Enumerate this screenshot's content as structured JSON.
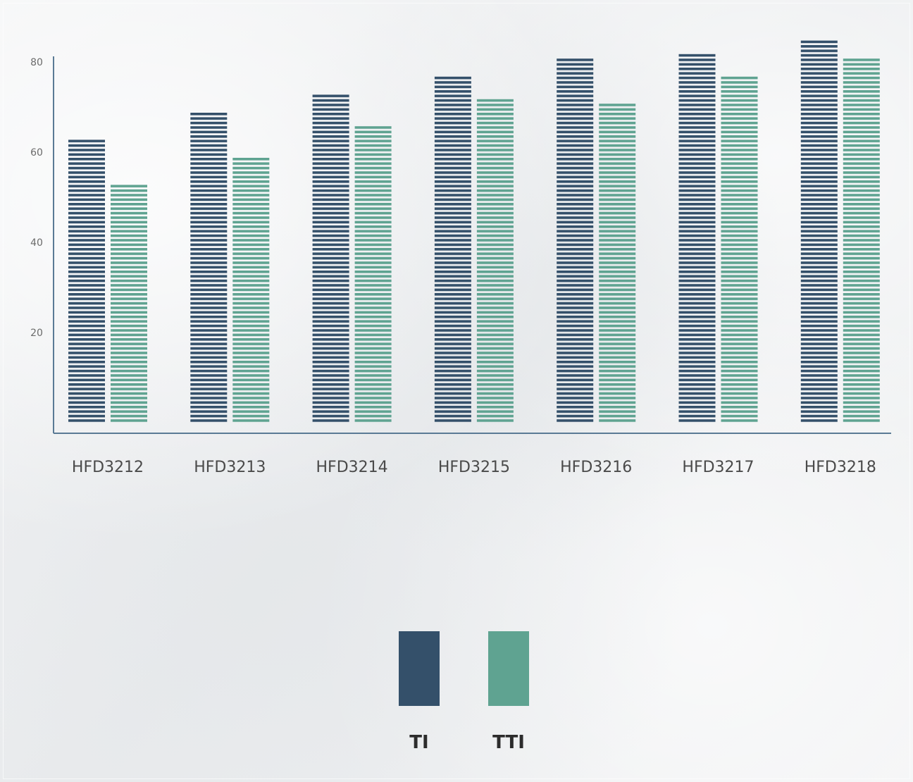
{
  "chart_data": {
    "type": "bar",
    "title": "",
    "xlabel": "",
    "ylabel": "",
    "ylim": [
      0,
      80
    ],
    "yticks": [
      "20",
      "40",
      "60",
      "80"
    ],
    "categories": [
      "HFD3212",
      "HFD3213",
      "HFD3214",
      "HFD3215",
      "HFD3216",
      "HFD3217",
      "HFD3218"
    ],
    "series": [
      {
        "name": "TI",
        "color": "#34506a",
        "values": [
          63,
          69,
          73,
          77,
          81,
          82,
          85
        ]
      },
      {
        "name": "TTI",
        "color": "#5fa391",
        "values": [
          53,
          59,
          66,
          72,
          71,
          77,
          81
        ]
      }
    ],
    "bar_style": "horizontal-line-hatched",
    "grid": false,
    "legend": "bottom-center"
  }
}
